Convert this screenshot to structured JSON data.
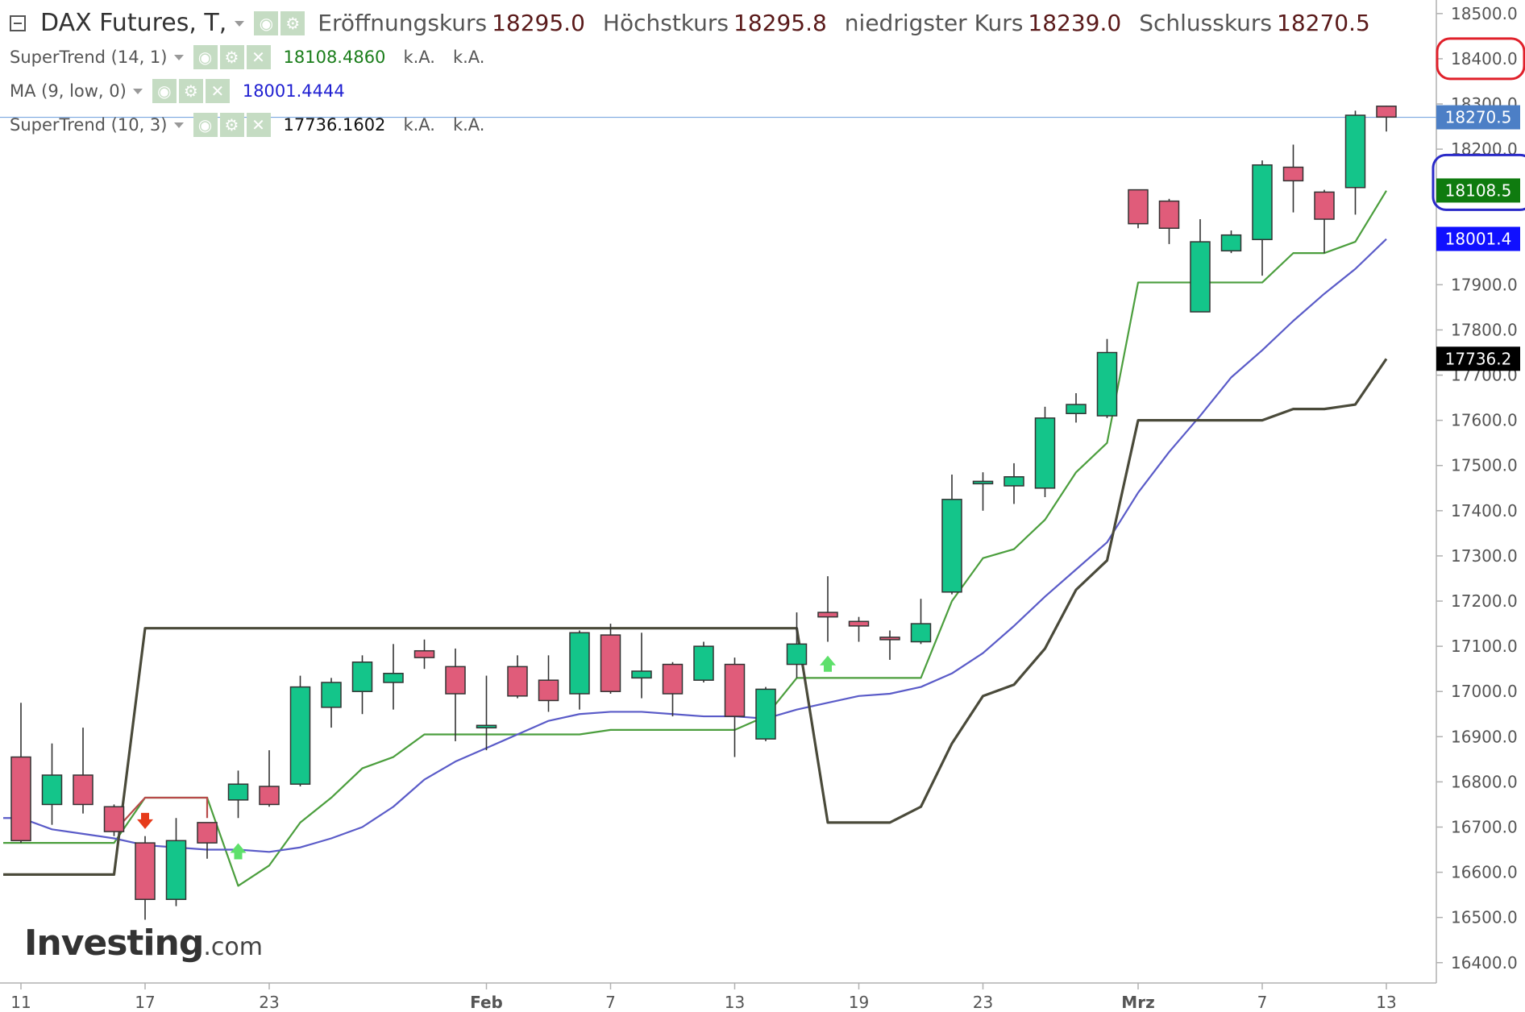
{
  "header": {
    "title": "DAX Futures, T,",
    "ohlc": [
      {
        "label": "Eröffnungskurs",
        "value": "18295.0"
      },
      {
        "label": "Höchstkurs",
        "value": "18295.8"
      },
      {
        "label": "niedrigster Kurs",
        "value": "18239.0"
      },
      {
        "label": "Schlusskurs",
        "value": "18270.5"
      }
    ]
  },
  "indicators": [
    {
      "name": "SuperTrend (14, 1)",
      "value": "18108.4860",
      "color": "#1a7d1a",
      "extra": [
        "k.A.",
        "k.A."
      ]
    },
    {
      "name": "MA (9, low, 0)",
      "value": "18001.4444",
      "color": "#1f1fd1",
      "extra": []
    },
    {
      "name": "SuperTrend (10, 3)",
      "value": "17736.1602",
      "color": "#111111",
      "extra": [
        "k.A.",
        "k.A."
      ]
    }
  ],
  "icons": {
    "visibility": "eye-icon",
    "settings": "gear-icon",
    "remove": "close-icon",
    "collapse": "minus-box-icon"
  },
  "logo": {
    "brand": "Investing",
    "suffix": ".com"
  },
  "colors": {
    "up": "#14c58a",
    "down": "#e05c7a",
    "st14": "#4b9e3d",
    "st10": "#4a4a3a",
    "ma": "#5a5bc8",
    "axis": "#b0b0b0",
    "text": "#555555",
    "priceLine": "#7aa7e0"
  },
  "chart_data": {
    "type": "candlestick",
    "title": "DAX Futures, T",
    "xlabel": "",
    "ylabel": "",
    "ylim": [
      16355,
      18530
    ],
    "yticks": [
      16400,
      16500,
      16600,
      16700,
      16800,
      16900,
      17000,
      17100,
      17200,
      17300,
      17400,
      17500,
      17600,
      17700,
      17800,
      17900,
      18000,
      18100,
      18200,
      18300,
      18400,
      18500
    ],
    "ytick_labels": [
      "16400.0",
      "16500.0",
      "16600.0",
      "16700.0",
      "16800.0",
      "16900.0",
      "17000.0",
      "17100.0",
      "17200.0",
      "17300.0",
      "17400.0",
      "17500.0",
      "17600.0",
      "17700.0",
      "17800.0",
      "17900.0",
      "18000.0",
      "18100.0",
      "18200.0",
      "18300.0",
      "18400.0",
      "18500.0"
    ],
    "xticks": [
      {
        "index": 0,
        "label": "11"
      },
      {
        "index": 4,
        "label": "17"
      },
      {
        "index": 8,
        "label": "23"
      },
      {
        "index": 15,
        "label": "Feb"
      },
      {
        "index": 19,
        "label": "7"
      },
      {
        "index": 23,
        "label": "13"
      },
      {
        "index": 27,
        "label": "19"
      },
      {
        "index": 31,
        "label": "23"
      },
      {
        "index": 36,
        "label": "Mrz"
      },
      {
        "index": 40,
        "label": "7"
      },
      {
        "index": 44,
        "label": "13"
      }
    ],
    "candles": [
      {
        "o": 16855,
        "h": 16975,
        "l": 16665,
        "c": 16670
      },
      {
        "o": 16750,
        "h": 16885,
        "l": 16705,
        "c": 16815
      },
      {
        "o": 16815,
        "h": 16920,
        "l": 16730,
        "c": 16750
      },
      {
        "o": 16745,
        "h": 16750,
        "l": 16680,
        "c": 16690
      },
      {
        "o": 16665,
        "h": 16680,
        "l": 16495,
        "c": 16540
      },
      {
        "o": 16540,
        "h": 16720,
        "l": 16525,
        "c": 16670
      },
      {
        "o": 16710,
        "h": 16710,
        "l": 16630,
        "c": 16665
      },
      {
        "o": 16760,
        "h": 16825,
        "l": 16720,
        "c": 16795
      },
      {
        "o": 16790,
        "h": 16870,
        "l": 16745,
        "c": 16750
      },
      {
        "o": 16795,
        "h": 17035,
        "l": 16790,
        "c": 17010
      },
      {
        "o": 16965,
        "h": 17030,
        "l": 16920,
        "c": 17020
      },
      {
        "o": 17000,
        "h": 17080,
        "l": 16950,
        "c": 17065
      },
      {
        "o": 17020,
        "h": 17105,
        "l": 16960,
        "c": 17040
      },
      {
        "o": 17090,
        "h": 17115,
        "l": 17050,
        "c": 17075
      },
      {
        "o": 17055,
        "h": 17095,
        "l": 16890,
        "c": 16995
      },
      {
        "o": 16925,
        "h": 17035,
        "l": 16870,
        "c": 16925
      },
      {
        "o": 17055,
        "h": 17080,
        "l": 16985,
        "c": 16990
      },
      {
        "o": 17025,
        "h": 17080,
        "l": 16955,
        "c": 16980
      },
      {
        "o": 16995,
        "h": 17135,
        "l": 16960,
        "c": 17130
      },
      {
        "o": 17125,
        "h": 17150,
        "l": 16995,
        "c": 17000
      },
      {
        "o": 17030,
        "h": 17130,
        "l": 16985,
        "c": 17045
      },
      {
        "o": 17060,
        "h": 17065,
        "l": 16945,
        "c": 16995
      },
      {
        "o": 17025,
        "h": 17110,
        "l": 17020,
        "c": 17100
      },
      {
        "o": 17060,
        "h": 17075,
        "l": 16855,
        "c": 16945
      },
      {
        "o": 16895,
        "h": 17010,
        "l": 16890,
        "c": 17005
      },
      {
        "o": 17060,
        "h": 17175,
        "l": 17030,
        "c": 17105
      },
      {
        "o": 17175,
        "h": 17255,
        "l": 17110,
        "c": 17165
      },
      {
        "o": 17155,
        "h": 17165,
        "l": 17110,
        "c": 17145
      },
      {
        "o": 17120,
        "h": 17135,
        "l": 17070,
        "c": 17115
      },
      {
        "o": 17110,
        "h": 17205,
        "l": 17105,
        "c": 17150
      },
      {
        "o": 17220,
        "h": 17480,
        "l": 17215,
        "c": 17425
      },
      {
        "o": 17465,
        "h": 17485,
        "l": 17400,
        "c": 17465
      },
      {
        "o": 17455,
        "h": 17505,
        "l": 17415,
        "c": 17475
      },
      {
        "o": 17450,
        "h": 17630,
        "l": 17430,
        "c": 17605
      },
      {
        "o": 17615,
        "h": 17660,
        "l": 17595,
        "c": 17635
      },
      {
        "o": 17610,
        "h": 17780,
        "l": 17605,
        "c": 17750
      },
      {
        "o": 18110,
        "h": 18110,
        "l": 18025,
        "c": 18035
      },
      {
        "o": 18085,
        "h": 18090,
        "l": 17990,
        "c": 18025
      },
      {
        "o": 17840,
        "h": 18045,
        "l": 17840,
        "c": 17995
      },
      {
        "o": 17975,
        "h": 18020,
        "l": 17970,
        "c": 18010
      },
      {
        "o": 18000,
        "h": 18175,
        "l": 17920,
        "c": 18165
      },
      {
        "o": 18160,
        "h": 18210,
        "l": 18060,
        "c": 18130
      },
      {
        "o": 18105,
        "h": 18110,
        "l": 17970,
        "c": 18045
      },
      {
        "o": 18115,
        "h": 18285,
        "l": 18055,
        "c": 18275
      },
      {
        "o": 18295,
        "h": 18296,
        "l": 18239,
        "c": 18271
      }
    ],
    "series": [
      {
        "name": "SuperTrend (14, 1)",
        "values": [
          16665,
          16665,
          16665,
          16665,
          16765,
          16765,
          16765,
          16570,
          16615,
          16710,
          16765,
          16830,
          16855,
          16905,
          16905,
          16905,
          16905,
          16905,
          16905,
          16915,
          16915,
          16915,
          16915,
          16915,
          16945,
          17030,
          17030,
          17030,
          17030,
          17030,
          17200,
          17295,
          17315,
          17380,
          17485,
          17550,
          17905,
          17905,
          17905,
          17905,
          17905,
          17970,
          17970,
          17995,
          18108
        ]
      },
      {
        "name": "MA (9, low, 0)",
        "values": [
          16720,
          16695,
          16685,
          16675,
          16660,
          16655,
          16650,
          16650,
          16645,
          16655,
          16675,
          16700,
          16745,
          16805,
          16845,
          16875,
          16905,
          16935,
          16950,
          16955,
          16955,
          16950,
          16945,
          16945,
          16940,
          16960,
          16975,
          16990,
          16995,
          17010,
          17040,
          17085,
          17145,
          17210,
          17270,
          17330,
          17440,
          17530,
          17610,
          17695,
          17755,
          17820,
          17880,
          17935,
          18001
        ]
      },
      {
        "name": "SuperTrend (10, 3)",
        "values": [
          16595,
          16595,
          16595,
          16595,
          17140,
          17140,
          17140,
          17140,
          17140,
          17140,
          17140,
          17140,
          17140,
          17140,
          17140,
          17140,
          17140,
          17140,
          17140,
          17140,
          17140,
          17140,
          17140,
          17140,
          17140,
          17140,
          16710,
          16710,
          16710,
          16745,
          16885,
          16990,
          17015,
          17095,
          17225,
          17290,
          17600,
          17600,
          17600,
          17600,
          17600,
          17625,
          17625,
          17635,
          17736
        ]
      }
    ],
    "signals": [
      {
        "index": 4,
        "type": "sell",
        "price": 16710
      },
      {
        "index": 7,
        "type": "buy",
        "price": 16650
      },
      {
        "index": 26,
        "type": "buy",
        "price": 17065
      }
    ],
    "current_price_line": 18270.5,
    "price_labels": [
      {
        "value": 18270.5,
        "text": "18270.5",
        "bg": "#4c7fc6"
      },
      {
        "value": 18108.5,
        "text": "18108.5",
        "bg": "#0f7b0f"
      },
      {
        "value": 18001.4,
        "text": "18001.4",
        "bg": "#1010ff"
      },
      {
        "value": 17736.2,
        "text": "17736.2",
        "bg": "#000000"
      }
    ],
    "annotations": [
      {
        "shape": "ellipse",
        "color": "#e0202a",
        "around": "18400.0"
      },
      {
        "shape": "ellipse",
        "color": "#2a2ac8",
        "around": "18108.5"
      }
    ]
  }
}
